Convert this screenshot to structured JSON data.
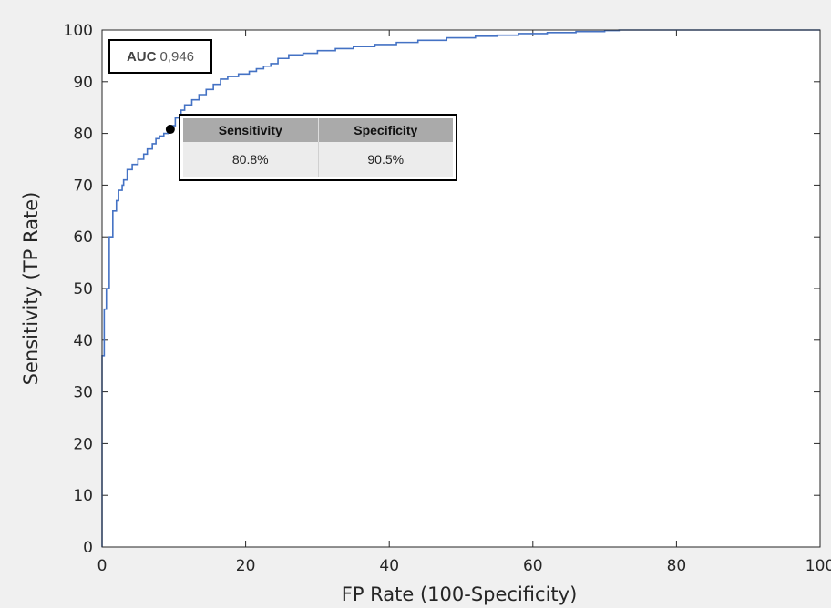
{
  "chart_data": {
    "type": "line",
    "title": "",
    "xlabel": "FP Rate (100-Specificity)",
    "ylabel": "Sensitivity (TP Rate)",
    "xlim": [
      0,
      100
    ],
    "ylim": [
      0,
      100
    ],
    "x_ticks": [
      "0",
      "20",
      "40",
      "60",
      "80",
      "100"
    ],
    "y_ticks": [
      "0",
      "10",
      "20",
      "30",
      "40",
      "50",
      "60",
      "70",
      "80",
      "90",
      "100"
    ],
    "grid": false,
    "series": [
      {
        "color": "#4472c4",
        "x": [
          0,
          0,
          0.3,
          0.3,
          0.6,
          0.6,
          1.0,
          1.0,
          1.5,
          1.5,
          2.0,
          2.3,
          2.8,
          3.0,
          3.5,
          4.2,
          5.0,
          5.8,
          6.3,
          7.0,
          7.5,
          8.0,
          8.6,
          9.2,
          9.6,
          10.2,
          11.0,
          11.5,
          12.5,
          13.5,
          14.5,
          15.5,
          16.5,
          17.5,
          19.0,
          20.5,
          21.5,
          22.5,
          23.5,
          24.5,
          26.0,
          28.0,
          30.0,
          32.5,
          35.0,
          38.0,
          41.0,
          44.0,
          48.0,
          52.0,
          55.0,
          58.0,
          62.0,
          66.0,
          70.0,
          72.0,
          80.0,
          90.0,
          100.0
        ],
        "y": [
          0,
          37,
          37,
          46,
          46,
          50,
          54,
          60,
          63,
          65,
          67,
          69,
          70,
          71,
          73,
          74,
          75,
          76,
          77,
          78,
          79,
          79.5,
          80,
          80.8,
          81.5,
          83,
          84.5,
          85.5,
          86.5,
          87.5,
          88.5,
          89.5,
          90.5,
          91,
          91.5,
          92,
          92.5,
          93,
          93.5,
          94.5,
          95.2,
          95.5,
          96,
          96.4,
          96.8,
          97.2,
          97.6,
          98,
          98.5,
          98.8,
          99,
          99.3,
          99.5,
          99.7,
          99.9,
          100,
          100,
          100,
          100
        ]
      }
    ],
    "marker": {
      "x": 9.5,
      "y": 80.8
    },
    "annotations": {
      "auc_label": "AUC",
      "auc_value": "0,946",
      "table_headers": [
        "Sensitivity",
        "Specificity"
      ],
      "table_values": [
        "80.8%",
        "90.5%"
      ]
    }
  }
}
